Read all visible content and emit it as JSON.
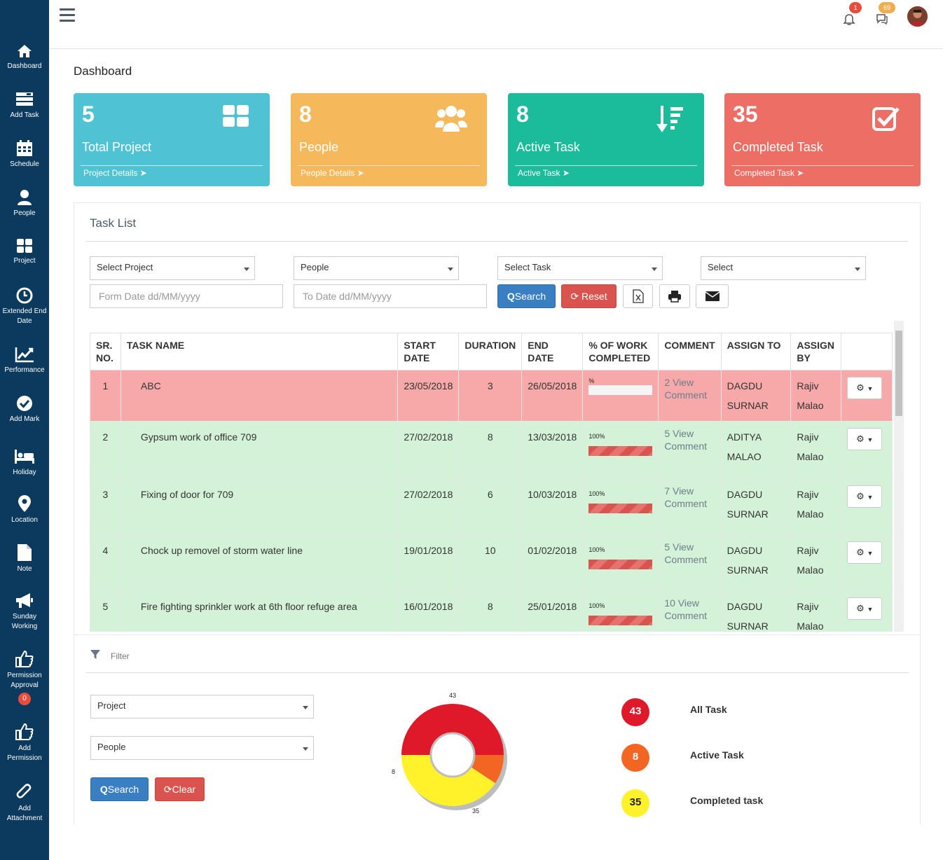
{
  "sidebar": {
    "items": [
      {
        "label": "Dashboard",
        "icon": "home-icon"
      },
      {
        "label": "Add Task",
        "icon": "add-task-icon"
      },
      {
        "label": "Schedule",
        "icon": "calendar-icon"
      },
      {
        "label": "People",
        "icon": "user-icon"
      },
      {
        "label": "Project",
        "icon": "grid-icon"
      },
      {
        "label": "Extended End Date",
        "icon": "clock-icon"
      },
      {
        "label": "Performance",
        "icon": "chart-line-icon"
      },
      {
        "label": "Add Mark",
        "icon": "check-circle-icon"
      },
      {
        "label": "Holiday",
        "icon": "bed-icon"
      },
      {
        "label": "Location",
        "icon": "map-pin-icon"
      },
      {
        "label": "Note",
        "icon": "file-icon"
      },
      {
        "label": "Sunday Working",
        "icon": "bullhorn-icon"
      },
      {
        "label": "Permission Approval",
        "icon": "thumbs-up-icon",
        "badge": "0"
      },
      {
        "label": "Add Permission",
        "icon": "thumbs-up-icon"
      },
      {
        "label": "Add Attachment",
        "icon": "paperclip-icon"
      }
    ]
  },
  "topbar": {
    "notifications_count": "1",
    "messages_count": "69"
  },
  "page": {
    "title": "Dashboard"
  },
  "cards": [
    {
      "number": "5",
      "label": "Total Project",
      "link": "Project Details",
      "color": "#4fc3d3",
      "icon": "grid-icon"
    },
    {
      "number": "8",
      "label": "People",
      "link": "People Details",
      "color": "#f5b95b",
      "icon": "users-icon"
    },
    {
      "number": "8",
      "label": "Active Task",
      "link": "Active Task",
      "color": "#1abc9c",
      "icon": "sort-amount-icon"
    },
    {
      "number": "35",
      "label": "Completed Task",
      "link": "Completed Task",
      "color": "#ec6e65",
      "icon": "check-square-icon"
    }
  ],
  "task_list": {
    "title": "Task List",
    "filters": {
      "project": "Select Project",
      "people": "People",
      "task": "Select Task",
      "status": "Select",
      "from_date_placeholder": "Form Date dd/MM/yyyy",
      "to_date_placeholder": "To Date dd/MM/yyyy",
      "search_label": "Search",
      "reset_label": "Reset"
    },
    "columns": [
      "SR. NO.",
      "TASK NAME",
      "START DATE",
      "DURATION",
      "END DATE",
      "% OF WORK COMPLETED",
      "COMMENT",
      "ASSIGN TO",
      "ASSIGN BY"
    ],
    "rows": [
      {
        "sr": "1",
        "name": "ABC",
        "start": "23/05/2018",
        "duration": "3",
        "end": "26/05/2018",
        "pct_label": "%",
        "pct": 0,
        "comment": "2 View Comment",
        "assign_to_1": "DAGDU",
        "assign_to_2": "SURNAR",
        "assign_by_1": "Rajiv",
        "assign_by_2": "Malao",
        "status": "overdue"
      },
      {
        "sr": "2",
        "name": "Gypsum work of office 709",
        "start": "27/02/2018",
        "duration": "8",
        "end": "13/03/2018",
        "pct_label": "100%",
        "pct": 100,
        "comment": "5 View Comment",
        "assign_to_1": "ADITYA",
        "assign_to_2": "MALAO",
        "assign_by_1": "Rajiv",
        "assign_by_2": "Malao",
        "status": "done"
      },
      {
        "sr": "3",
        "name": "Fixing of door for 709",
        "start": "27/02/2018",
        "duration": "6",
        "end": "10/03/2018",
        "pct_label": "100%",
        "pct": 100,
        "comment": "7 View Comment",
        "assign_to_1": "DAGDU",
        "assign_to_2": "SURNAR",
        "assign_by_1": "Rajiv",
        "assign_by_2": "Malao",
        "status": "done"
      },
      {
        "sr": "4",
        "name": "Chock up removel of storm water line",
        "start": "19/01/2018",
        "duration": "10",
        "end": "01/02/2018",
        "pct_label": "100%",
        "pct": 100,
        "comment": "5 View Comment",
        "assign_to_1": "DAGDU",
        "assign_to_2": "SURNAR",
        "assign_by_1": "Rajiv",
        "assign_by_2": "Malao",
        "status": "done"
      },
      {
        "sr": "5",
        "name": "Fire fighting sprinkler work at 6th floor refuge area",
        "start": "16/01/2018",
        "duration": "8",
        "end": "25/01/2018",
        "pct_label": "100%",
        "pct": 100,
        "comment": "10 View Comment",
        "assign_to_1": "DAGDU",
        "assign_to_2": "SURNAR",
        "assign_by_1": "Rajiv",
        "assign_by_2": "Malao",
        "status": "done"
      }
    ]
  },
  "filter_panel": {
    "title": "Filter",
    "project": "Project",
    "people": "People",
    "search_label": "Search",
    "clear_label": "Clear"
  },
  "chart_data": {
    "type": "pie",
    "categories": [
      "All Task",
      "Active Task",
      "Completed task"
    ],
    "values": [
      43,
      8,
      35
    ],
    "colors": [
      "#e0192a",
      "#f26522",
      "#fff22b"
    ]
  },
  "legend": [
    {
      "value": "43",
      "label": "All Task",
      "color": "#e0192a"
    },
    {
      "value": "8",
      "label": "Active Task",
      "color": "#f26522"
    },
    {
      "value": "35",
      "label": "Completed task",
      "color": "#fff22b"
    }
  ]
}
